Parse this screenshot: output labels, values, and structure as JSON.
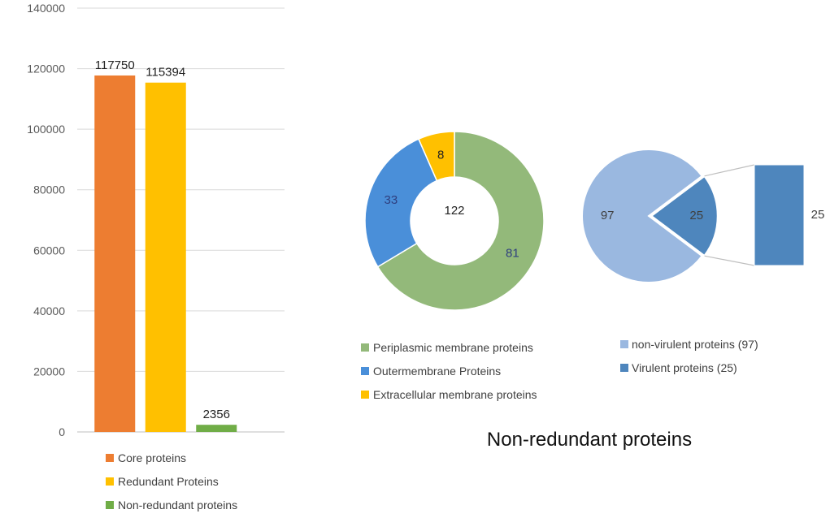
{
  "chart_data": [
    {
      "type": "bar",
      "categories": [
        "Core proteins",
        "Redundant Proteins",
        "Non-redundant proteins"
      ],
      "values": [
        117750,
        115394,
        2356
      ],
      "colors": [
        "#ED7D31",
        "#FFC000",
        "#70AD47"
      ],
      "ylim": [
        0,
        140000
      ],
      "yticks": [
        0,
        20000,
        40000,
        60000,
        80000,
        100000,
        120000,
        140000
      ],
      "grid": true,
      "legend": "bottom"
    },
    {
      "type": "pie",
      "variant": "donut",
      "center_label": "122",
      "labels": [
        "Periplasmic membrane proteins",
        "Outermembrane Proteins",
        "Extracellular membrane proteins"
      ],
      "values": [
        81,
        33,
        8
      ],
      "colors": [
        "#93B97A",
        "#4A8FD9",
        "#FFC000"
      ],
      "label_colors": [
        "#2F3F7F",
        "#2F3F7F",
        "#222222"
      ],
      "legend": "bottom"
    },
    {
      "type": "pie",
      "variant": "pie-of-bar",
      "labels": [
        "non-virulent proteins (97)",
        "Virulent proteins (25)"
      ],
      "values": [
        97,
        25
      ],
      "colors": [
        "#9AB8E0",
        "#4E86BD"
      ],
      "bar_value": 25,
      "legend": "bottom"
    }
  ],
  "caption": "Non-redundant proteins"
}
